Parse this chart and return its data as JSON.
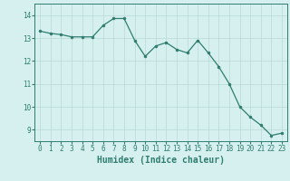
{
  "x": [
    0,
    1,
    2,
    3,
    4,
    5,
    6,
    7,
    8,
    9,
    10,
    11,
    12,
    13,
    14,
    15,
    16,
    17,
    18,
    19,
    20,
    21,
    22,
    23
  ],
  "y": [
    13.3,
    13.2,
    13.15,
    13.05,
    13.05,
    13.05,
    13.55,
    13.85,
    13.85,
    12.9,
    12.2,
    12.65,
    12.8,
    12.5,
    12.35,
    12.9,
    12.35,
    11.75,
    11.0,
    10.0,
    9.55,
    9.2,
    8.75,
    8.85
  ],
  "line_color": "#2e7d6e",
  "marker": "o",
  "marker_size": 2.0,
  "background_color": "#d6f0ef",
  "grid_color": "#b8d8d5",
  "xlabel": "Humidex (Indice chaleur)",
  "ylim": [
    8.5,
    14.5
  ],
  "xlim": [
    -0.5,
    23.5
  ],
  "yticks": [
    9,
    10,
    11,
    12,
    13,
    14
  ],
  "xtick_labels": [
    "0",
    "1",
    "2",
    "3",
    "4",
    "5",
    "6",
    "7",
    "8",
    "9",
    "10",
    "11",
    "12",
    "13",
    "14",
    "15",
    "16",
    "17",
    "18",
    "19",
    "20",
    "21",
    "22",
    "23"
  ],
  "tick_color": "#2e7d6e",
  "label_fontsize": 5.5,
  "xlabel_fontsize": 7.0
}
